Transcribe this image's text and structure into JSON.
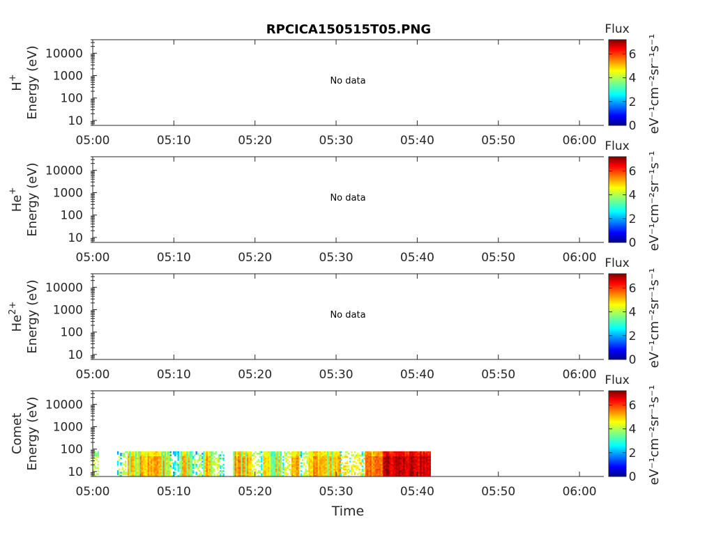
{
  "title": "RPCICA150515T05.PNG",
  "chart_data": [
    {
      "type": "heatmap",
      "panel": "H+",
      "ylabel_species": "H",
      "ylabel_charge": "+",
      "ylabel_units": "Energy (eV)",
      "yscale": "log",
      "ylim": [
        6,
        40000
      ],
      "yticks": [
        10,
        100,
        1000,
        10000
      ],
      "yticklabels": [
        "10",
        "100",
        "1000",
        "10000"
      ],
      "xlim_minutes": [
        0,
        63
      ],
      "xticks_minutes": [
        0,
        10,
        20,
        30,
        40,
        50,
        60
      ],
      "xticklabels": [
        "05:00",
        "05:10",
        "05:20",
        "05:30",
        "05:40",
        "05:50",
        "06:00"
      ],
      "annotation": "No data",
      "colorbar": {
        "title": "Flux",
        "label": "eV⁻¹cm⁻²sr⁻¹s⁻¹",
        "range": [
          0,
          7.2
        ],
        "ticks": [
          0,
          2,
          4,
          6
        ],
        "ticklabels": [
          "0",
          "2",
          "4",
          "6"
        ],
        "colormap": "jet"
      }
    },
    {
      "type": "heatmap",
      "panel": "He+",
      "ylabel_species": "He",
      "ylabel_charge": "+",
      "ylabel_units": "Energy (eV)",
      "yscale": "log",
      "ylim": [
        6,
        40000
      ],
      "yticks": [
        10,
        100,
        1000,
        10000
      ],
      "yticklabels": [
        "10",
        "100",
        "1000",
        "10000"
      ],
      "xlim_minutes": [
        0,
        63
      ],
      "xticks_minutes": [
        0,
        10,
        20,
        30,
        40,
        50,
        60
      ],
      "xticklabels": [
        "05:00",
        "05:10",
        "05:20",
        "05:30",
        "05:40",
        "05:50",
        "06:00"
      ],
      "annotation": "No data",
      "colorbar": {
        "title": "Flux",
        "label": "eV⁻¹cm⁻²sr⁻¹s⁻¹",
        "range": [
          0,
          7.2
        ],
        "ticks": [
          0,
          2,
          4,
          6
        ],
        "ticklabels": [
          "0",
          "2",
          "4",
          "6"
        ],
        "colormap": "jet"
      }
    },
    {
      "type": "heatmap",
      "panel": "He2+",
      "ylabel_species": "He",
      "ylabel_charge": "2+",
      "ylabel_units": "Energy (eV)",
      "yscale": "log",
      "ylim": [
        6,
        40000
      ],
      "yticks": [
        10,
        100,
        1000,
        10000
      ],
      "yticklabels": [
        "10",
        "100",
        "1000",
        "10000"
      ],
      "xlim_minutes": [
        0,
        63
      ],
      "xticks_minutes": [
        0,
        10,
        20,
        30,
        40,
        50,
        60
      ],
      "xticklabels": [
        "05:00",
        "05:10",
        "05:20",
        "05:30",
        "05:40",
        "05:50",
        "06:00"
      ],
      "annotation": "No data",
      "colorbar": {
        "title": "Flux",
        "label": "eV⁻¹cm⁻²sr⁻¹s⁻¹",
        "range": [
          0,
          7.2
        ],
        "ticks": [
          0,
          2,
          4,
          6
        ],
        "ticklabels": [
          "0",
          "2",
          "4",
          "6"
        ],
        "colormap": "jet"
      }
    },
    {
      "type": "heatmap",
      "panel": "Comet",
      "ylabel_species": "Comet",
      "ylabel_charge": "",
      "ylabel_units": "Energy (eV)",
      "yscale": "log",
      "ylim": [
        6,
        40000
      ],
      "yticks": [
        10,
        100,
        1000,
        10000
      ],
      "yticklabels": [
        "10",
        "100",
        "1000",
        "10000"
      ],
      "xlim_minutes": [
        0,
        63
      ],
      "xticks_minutes": [
        0,
        10,
        20,
        30,
        40,
        50,
        60
      ],
      "xticklabels": [
        "05:00",
        "05:10",
        "05:20",
        "05:30",
        "05:40",
        "05:50",
        "06:00"
      ],
      "xlabel": "Time",
      "annotation": "",
      "data_time_range_minutes": [
        0,
        41.5
      ],
      "data_energy_range_eV": [
        6,
        80
      ],
      "intensity_segments": [
        {
          "t0": 0.0,
          "t1": 0.6,
          "level": 4.2
        },
        {
          "t0": 0.6,
          "t1": 3.0,
          "level": 0
        },
        {
          "t0": 3.0,
          "t1": 4.3,
          "level": 3.8
        },
        {
          "t0": 4.3,
          "t1": 9.5,
          "level": 5.0
        },
        {
          "t0": 9.5,
          "t1": 10.8,
          "level": 4.0
        },
        {
          "t0": 10.8,
          "t1": 12.3,
          "level": 5.0
        },
        {
          "t0": 12.3,
          "t1": 13.6,
          "level": 3.9
        },
        {
          "t0": 13.6,
          "t1": 14.7,
          "level": 5.0
        },
        {
          "t0": 14.7,
          "t1": 16.2,
          "level": 4.1
        },
        {
          "t0": 16.2,
          "t1": 17.3,
          "level": 0
        },
        {
          "t0": 17.3,
          "t1": 19.4,
          "level": 5.1
        },
        {
          "t0": 19.4,
          "t1": 21.0,
          "level": 4.1
        },
        {
          "t0": 21.0,
          "t1": 23.2,
          "level": 4.8
        },
        {
          "t0": 23.2,
          "t1": 24.5,
          "level": 4.3
        },
        {
          "t0": 24.5,
          "t1": 25.4,
          "level": 5.0
        },
        {
          "t0": 25.4,
          "t1": 26.6,
          "level": 4.1
        },
        {
          "t0": 26.6,
          "t1": 30.5,
          "level": 5.0
        },
        {
          "t0": 30.5,
          "t1": 33.6,
          "level": 4.4
        },
        {
          "t0": 33.6,
          "t1": 35.8,
          "level": 5.4
        },
        {
          "t0": 35.8,
          "t1": 41.5,
          "level": 6.7
        }
      ],
      "colorbar": {
        "title": "Flux",
        "label": "eV⁻¹cm⁻²sr⁻¹s⁻¹",
        "range": [
          0,
          7.2
        ],
        "ticks": [
          0,
          2,
          4,
          6
        ],
        "ticklabels": [
          "0",
          "2",
          "4",
          "6"
        ],
        "colormap": "jet"
      }
    }
  ]
}
